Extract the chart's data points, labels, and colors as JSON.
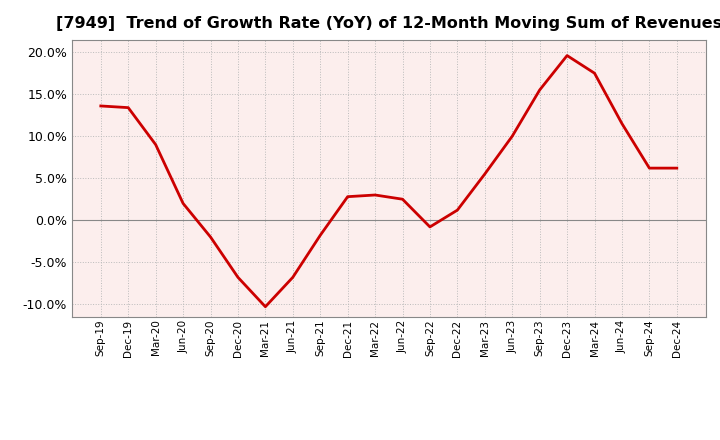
{
  "title": "[7949]  Trend of Growth Rate (YoY) of 12-Month Moving Sum of Revenues",
  "title_fontsize": 11.5,
  "line_color": "#CC0000",
  "background_color": "#FFFFFF",
  "plot_bg_color": "#FCEEED",
  "grid_color": "#BBBBBB",
  "ylim": [
    -0.115,
    0.215
  ],
  "yticks": [
    -0.1,
    -0.05,
    0.0,
    0.05,
    0.1,
    0.15,
    0.2
  ],
  "x_labels": [
    "Sep-19",
    "Dec-19",
    "Mar-20",
    "Jun-20",
    "Sep-20",
    "Dec-20",
    "Mar-21",
    "Jun-21",
    "Sep-21",
    "Dec-21",
    "Mar-22",
    "Jun-22",
    "Sep-22",
    "Dec-22",
    "Mar-23",
    "Jun-23",
    "Sep-23",
    "Dec-23",
    "Mar-24",
    "Jun-24",
    "Sep-24",
    "Dec-24"
  ],
  "y_values": [
    0.136,
    0.134,
    0.09,
    0.02,
    -0.02,
    -0.068,
    -0.103,
    -0.068,
    -0.018,
    0.028,
    0.03,
    0.025,
    -0.008,
    0.012,
    0.055,
    0.1,
    0.155,
    0.196,
    0.175,
    0.115,
    0.062,
    0.062
  ]
}
